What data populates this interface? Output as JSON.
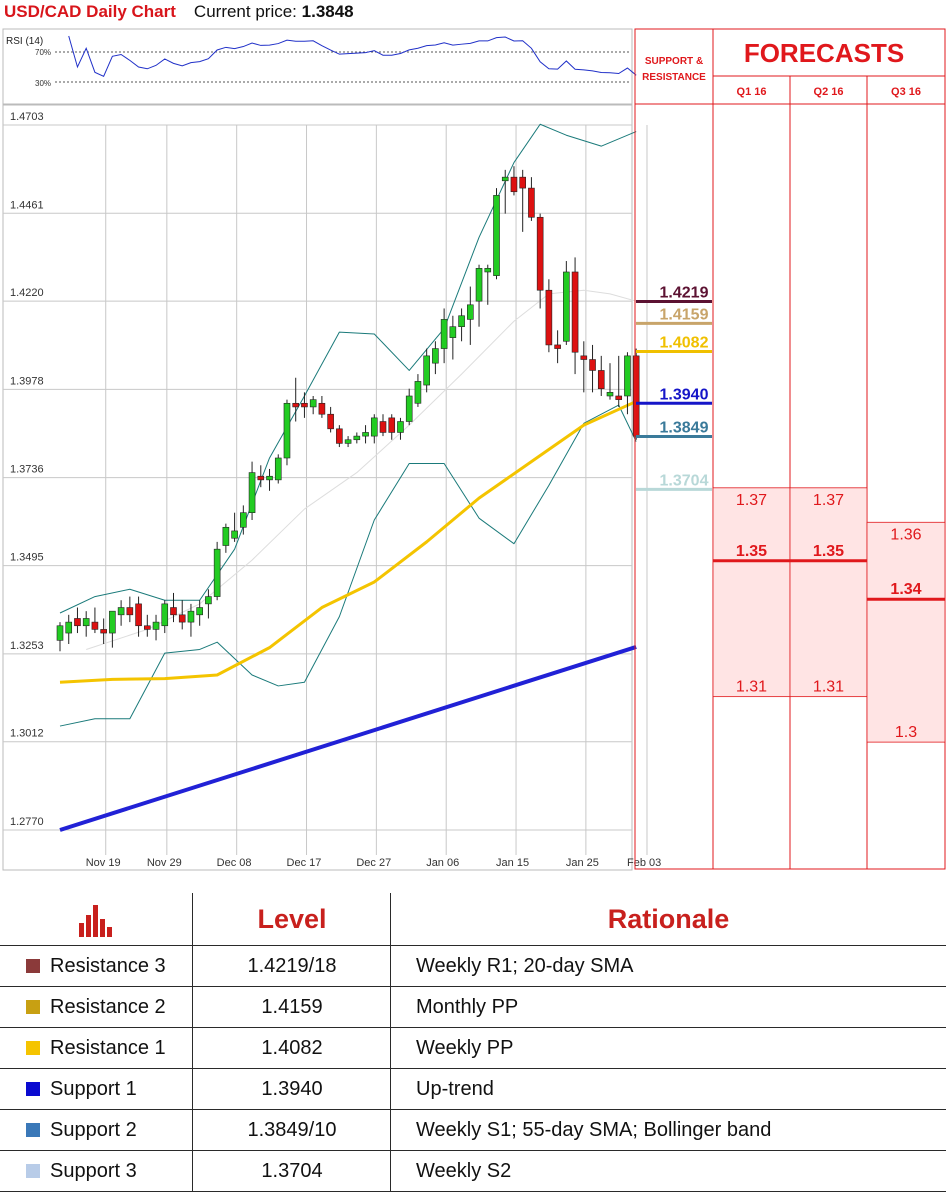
{
  "header": {
    "title": "USD/CAD Daily Chart",
    "price_label": "Current price:",
    "price": "1.3848"
  },
  "colors": {
    "red": "#e0181c",
    "sma200": "#2121d6",
    "sma55": "#f4c400",
    "bollinger": "#1a7a7a",
    "bull": "#22cc22",
    "bear": "#dd1111",
    "zone": "#ffe4e4"
  },
  "chart_data": {
    "type": "candlestick",
    "title": "USD/CAD Daily Chart",
    "ylim": [
      1.277,
      1.4703
    ],
    "yticks": [
      "1.4703",
      "1.4461",
      "1.4220",
      "1.3978",
      "1.3736",
      "1.3495",
      "1.3253",
      "1.3012",
      "1.2770"
    ],
    "xticks": [
      {
        "label": "Nov 19",
        "i": 1
      },
      {
        "label": "Nov 29",
        "i": 8
      },
      {
        "label": "Dec 08",
        "i": 16
      },
      {
        "label": "Dec 17",
        "i": 24
      },
      {
        "label": "Dec 27",
        "i": 32
      },
      {
        "label": "Jan 06",
        "i": 40
      },
      {
        "label": "Jan 15",
        "i": 48
      },
      {
        "label": "Jan 25",
        "i": 56
      },
      {
        "label": "Feb 03",
        "i": 63
      }
    ],
    "ohlc": [
      [
        1.329,
        1.334,
        1.326,
        1.333
      ],
      [
        1.331,
        1.336,
        1.328,
        1.334
      ],
      [
        1.335,
        1.338,
        1.331,
        1.333
      ],
      [
        1.333,
        1.337,
        1.33,
        1.335
      ],
      [
        1.334,
        1.338,
        1.331,
        1.332
      ],
      [
        1.332,
        1.335,
        1.328,
        1.331
      ],
      [
        1.331,
        1.337,
        1.327,
        1.337
      ],
      [
        1.336,
        1.34,
        1.333,
        1.338
      ],
      [
        1.338,
        1.341,
        1.334,
        1.336
      ],
      [
        1.339,
        1.341,
        1.33,
        1.333
      ],
      [
        1.333,
        1.336,
        1.33,
        1.332
      ],
      [
        1.332,
        1.336,
        1.329,
        1.334
      ],
      [
        1.333,
        1.34,
        1.331,
        1.339
      ],
      [
        1.338,
        1.342,
        1.334,
        1.336
      ],
      [
        1.336,
        1.34,
        1.332,
        1.334
      ],
      [
        1.334,
        1.339,
        1.33,
        1.337
      ],
      [
        1.336,
        1.34,
        1.333,
        1.338
      ],
      [
        1.339,
        1.343,
        1.335,
        1.341
      ],
      [
        1.341,
        1.356,
        1.34,
        1.354
      ],
      [
        1.355,
        1.361,
        1.353,
        1.36
      ],
      [
        1.357,
        1.364,
        1.356,
        1.359
      ],
      [
        1.36,
        1.366,
        1.358,
        1.364
      ],
      [
        1.364,
        1.378,
        1.362,
        1.375
      ],
      [
        1.374,
        1.377,
        1.371,
        1.373
      ],
      [
        1.373,
        1.376,
        1.37,
        1.374
      ],
      [
        1.373,
        1.38,
        1.372,
        1.379
      ],
      [
        1.379,
        1.395,
        1.377,
        1.394
      ],
      [
        1.394,
        1.401,
        1.389,
        1.393
      ],
      [
        1.394,
        1.397,
        1.39,
        1.393
      ],
      [
        1.393,
        1.396,
        1.391,
        1.395
      ],
      [
        1.394,
        1.396,
        1.39,
        1.391
      ],
      [
        1.391,
        1.393,
        1.386,
        1.387
      ],
      [
        1.387,
        1.388,
        1.382,
        1.383
      ],
      [
        1.383,
        1.385,
        1.382,
        1.384
      ],
      [
        1.384,
        1.386,
        1.383,
        1.385
      ],
      [
        1.385,
        1.388,
        1.383,
        1.386
      ],
      [
        1.385,
        1.391,
        1.383,
        1.39
      ],
      [
        1.389,
        1.391,
        1.385,
        1.386
      ],
      [
        1.39,
        1.391,
        1.384,
        1.386
      ],
      [
        1.386,
        1.39,
        1.384,
        1.389
      ],
      [
        1.389,
        1.398,
        1.388,
        1.396
      ],
      [
        1.394,
        1.402,
        1.393,
        1.4
      ],
      [
        1.399,
        1.409,
        1.397,
        1.407
      ],
      [
        1.405,
        1.411,
        1.402,
        1.409
      ],
      [
        1.409,
        1.42,
        1.405,
        1.417
      ],
      [
        1.412,
        1.418,
        1.406,
        1.415
      ],
      [
        1.415,
        1.42,
        1.411,
        1.418
      ],
      [
        1.417,
        1.426,
        1.41,
        1.421
      ],
      [
        1.422,
        1.432,
        1.415,
        1.431
      ],
      [
        1.43,
        1.432,
        1.421,
        1.431
      ],
      [
        1.429,
        1.453,
        1.428,
        1.451
      ],
      [
        1.455,
        1.458,
        1.446,
        1.456
      ],
      [
        1.456,
        1.459,
        1.451,
        1.452
      ],
      [
        1.456,
        1.458,
        1.441,
        1.453
      ],
      [
        1.453,
        1.456,
        1.444,
        1.445
      ],
      [
        1.445,
        1.446,
        1.42,
        1.425
      ],
      [
        1.425,
        1.428,
        1.408,
        1.41
      ],
      [
        1.41,
        1.414,
        1.405,
        1.409
      ],
      [
        1.411,
        1.433,
        1.41,
        1.43
      ],
      [
        1.43,
        1.434,
        1.402,
        1.408
      ],
      [
        1.407,
        1.411,
        1.397,
        1.406
      ],
      [
        1.406,
        1.41,
        1.397,
        1.403
      ],
      [
        1.403,
        1.407,
        1.396,
        1.398
      ],
      [
        1.396,
        1.405,
        1.395,
        1.397
      ],
      [
        1.396,
        1.407,
        1.393,
        1.395
      ],
      [
        1.396,
        1.408,
        1.391,
        1.407
      ],
      [
        1.407,
        1.409,
        1.384,
        1.385
      ]
    ],
    "sma200": {
      "from": [
        0,
        1.277
      ],
      "to": [
        66,
        1.3272
      ]
    },
    "sma55": [
      [
        0,
        1.3175
      ],
      [
        6,
        1.3183
      ],
      [
        12,
        1.3185
      ],
      [
        18,
        1.3195
      ],
      [
        24,
        1.327
      ],
      [
        30,
        1.338
      ],
      [
        36,
        1.345
      ],
      [
        42,
        1.356
      ],
      [
        48,
        1.368
      ],
      [
        54,
        1.378
      ],
      [
        60,
        1.388
      ],
      [
        66,
        1.3945
      ]
    ],
    "sma20": [
      [
        3,
        1.3265
      ],
      [
        10,
        1.332
      ],
      [
        16,
        1.339
      ],
      [
        22,
        1.351
      ],
      [
        28,
        1.365
      ],
      [
        34,
        1.375
      ],
      [
        40,
        1.388
      ],
      [
        46,
        1.402
      ],
      [
        52,
        1.4165
      ],
      [
        56,
        1.424
      ],
      [
        60,
        1.425
      ],
      [
        63,
        1.424
      ],
      [
        66,
        1.422
      ]
    ],
    "bollinger_upper": [
      [
        0,
        1.3365
      ],
      [
        4,
        1.341
      ],
      [
        8,
        1.343
      ],
      [
        12,
        1.34
      ],
      [
        16,
        1.34
      ],
      [
        20,
        1.354
      ],
      [
        24,
        1.379
      ],
      [
        28,
        1.396
      ],
      [
        32,
        1.4135
      ],
      [
        36,
        1.413
      ],
      [
        40,
        1.403
      ],
      [
        44,
        1.4145
      ],
      [
        48,
        1.4395
      ],
      [
        52,
        1.46
      ],
      [
        55,
        1.4705
      ],
      [
        58,
        1.4675
      ],
      [
        62,
        1.4645
      ],
      [
        66,
        1.4685
      ]
    ],
    "bollinger_lower": [
      [
        0,
        1.3055
      ],
      [
        4,
        1.3075
      ],
      [
        8,
        1.3075
      ],
      [
        12,
        1.3255
      ],
      [
        16,
        1.3265
      ],
      [
        18,
        1.3285
      ],
      [
        22,
        1.3195
      ],
      [
        25,
        1.3165
      ],
      [
        28,
        1.3175
      ],
      [
        32,
        1.3355
      ],
      [
        36,
        1.362
      ],
      [
        40,
        1.3775
      ],
      [
        44,
        1.3775
      ],
      [
        48,
        1.3625
      ],
      [
        52,
        1.3555
      ],
      [
        56,
        1.3715
      ],
      [
        60,
        1.3885
      ],
      [
        64,
        1.3935
      ],
      [
        66,
        1.3835
      ]
    ]
  },
  "rsi": {
    "label": "RSI (14)",
    "levels": [
      "70%",
      "30%"
    ]
  },
  "levels_panel": {
    "support_label": "SUPPORT & RESISTANCE",
    "levels": [
      {
        "value": "1.4219",
        "color": "#5c1232"
      },
      {
        "value": "1.4159",
        "color": "#c8a46a"
      },
      {
        "value": "1.4082",
        "color": "#f0c000"
      },
      {
        "value": "1.3940",
        "color": "#1515c8"
      },
      {
        "value": "1.3849",
        "color": "#3a7a9a"
      },
      {
        "value": "1.3704",
        "color": "#b8d8d8"
      }
    ]
  },
  "forecasts": {
    "title": "FORECASTS",
    "quarters": [
      "Q1 16",
      "Q2 16",
      "Q3 16"
    ],
    "q1": {
      "high": "1.37",
      "mid": "1.35",
      "low": "1.31"
    },
    "q2": {
      "high": "1.37",
      "mid": "1.35",
      "low": "1.31"
    },
    "q3": {
      "high": "1.36",
      "mid": "1.34",
      "low": "1.3"
    }
  },
  "table": {
    "header": {
      "level": "Level",
      "rationale": "Rationale"
    },
    "rows": [
      {
        "name": "Resistance 3",
        "level": "1.4219/18",
        "rationale": "Weekly R1; 20-day SMA",
        "color": "#8b3a3a"
      },
      {
        "name": "Resistance 2",
        "level": "1.4159",
        "rationale": "Monthly PP",
        "color": "#c8a012"
      },
      {
        "name": "Resistance 1",
        "level": "1.4082",
        "rationale": "Weekly PP",
        "color": "#f5c400"
      },
      {
        "name": "Support 1",
        "level": "1.3940",
        "rationale": "Up-trend",
        "color": "#0a0ad0"
      },
      {
        "name": "Support 2",
        "level": "1.3849/10",
        "rationale": "Weekly S1; 55-day SMA; Bollinger band",
        "color": "#3a78b8"
      },
      {
        "name": "Support 3",
        "level": "1.3704",
        "rationale": "Weekly S2",
        "color": "#b8cce8"
      }
    ]
  }
}
